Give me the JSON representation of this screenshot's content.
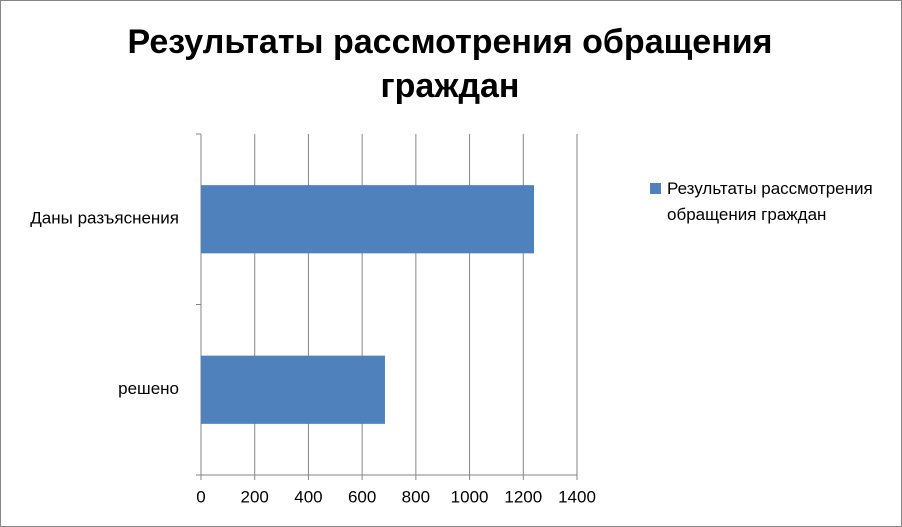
{
  "chart_data": {
    "type": "hbar",
    "title": "Результаты рассмотрения обращения граждан",
    "categories": [
      "Даны разъяснения",
      "решено"
    ],
    "series": [
      {
        "name": "Результаты рассмотрения обращения граждан",
        "color": "#4f81bd",
        "values": [
          1240,
          685
        ]
      }
    ],
    "xlim": [
      0,
      1400
    ],
    "xticks": [
      0,
      200,
      400,
      600,
      800,
      1000,
      1200,
      1400
    ],
    "grid": true,
    "legend": "right"
  }
}
